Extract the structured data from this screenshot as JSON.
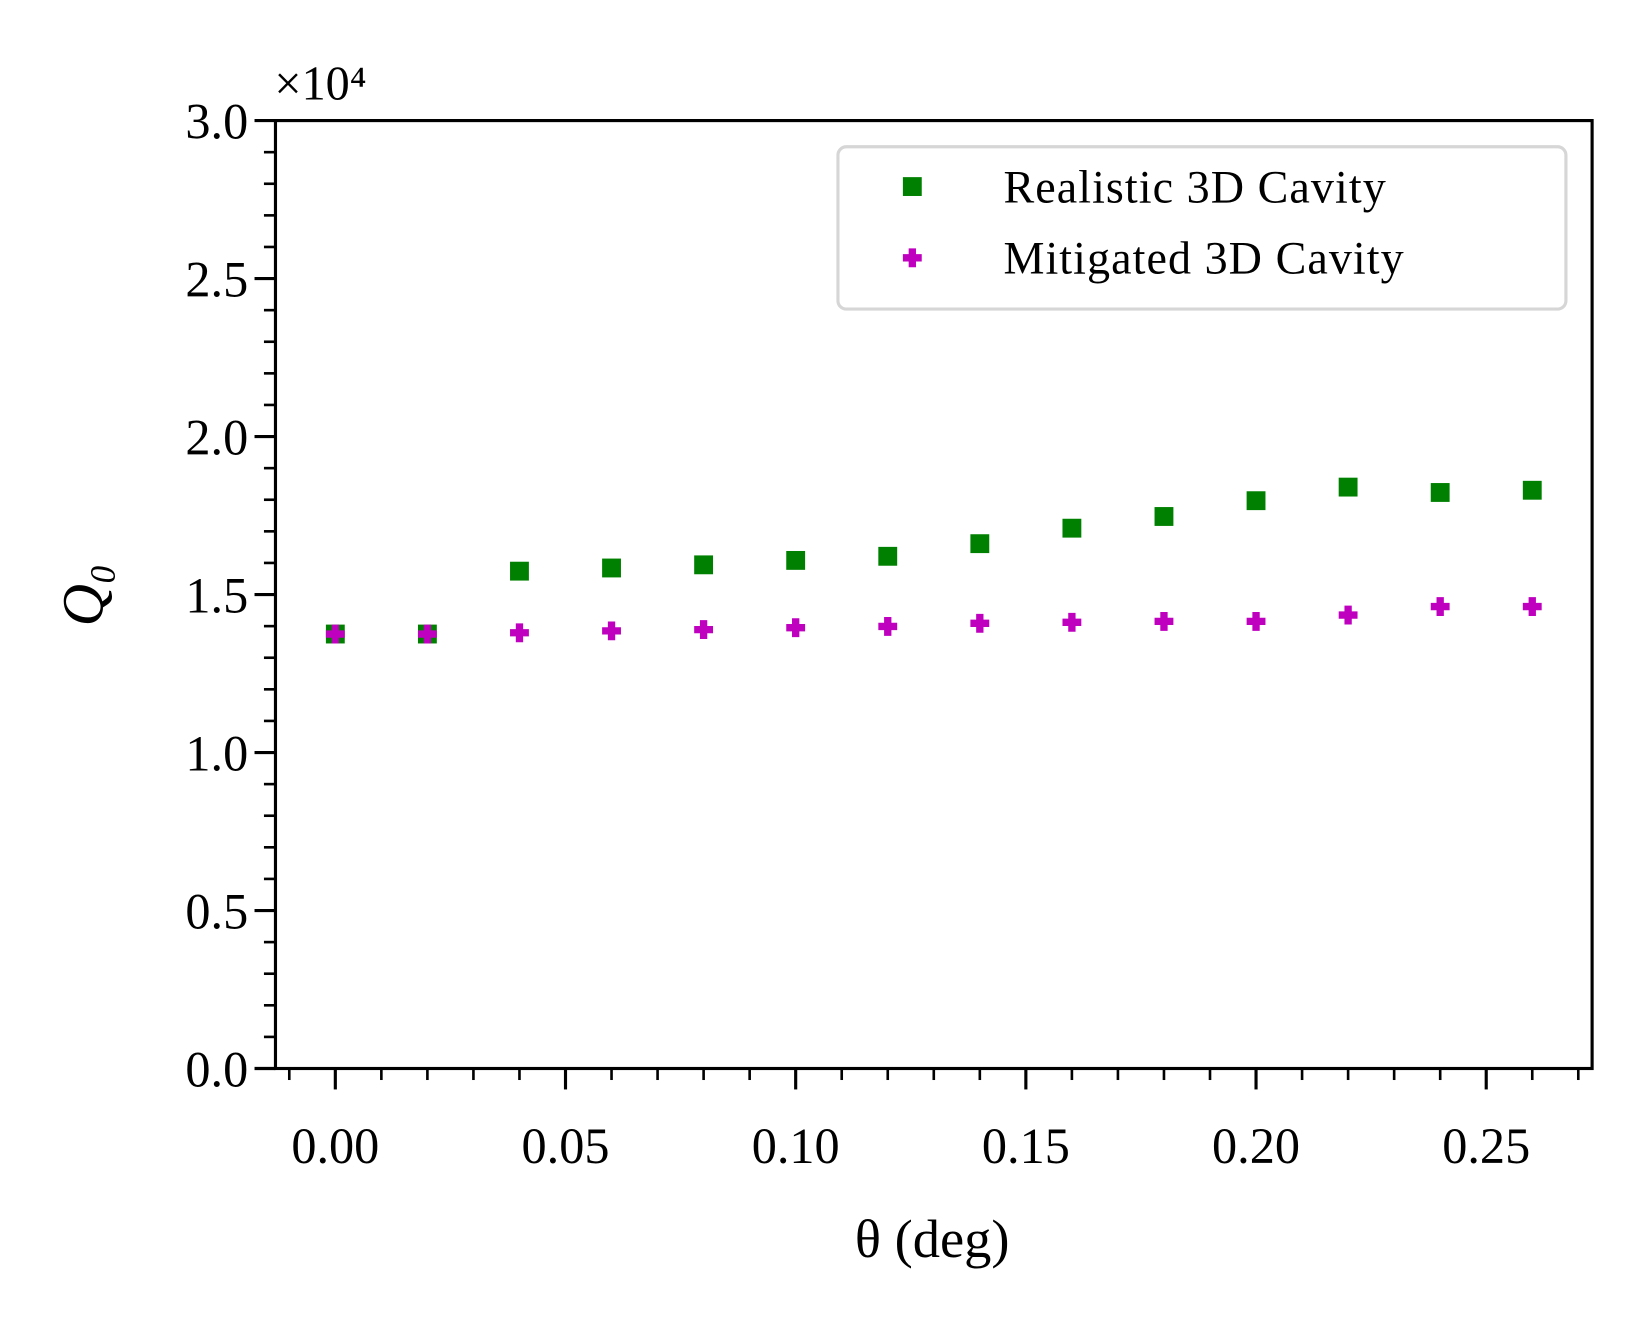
{
  "chart_data": {
    "type": "scatter",
    "xlabel": "θ (deg)",
    "ylabel": "Q₀",
    "y_offset_text": "×10⁴",
    "xlim": [
      -0.013,
      0.273
    ],
    "ylim": [
      0,
      3.0
    ],
    "xticks": [
      {
        "value": 0,
        "label": "0.00"
      },
      {
        "value": 0.05,
        "label": "0.05"
      },
      {
        "value": 0.1,
        "label": "0.10"
      },
      {
        "value": 0.15,
        "label": "0.15"
      },
      {
        "value": 0.2,
        "label": "0.20"
      },
      {
        "value": 0.25,
        "label": "0.25"
      }
    ],
    "yticks": [
      {
        "value": 0,
        "label": "0.0"
      },
      0.5,
      {
        "value": 1,
        "label": "1.0"
      },
      1.5,
      {
        "value": 2,
        "label": "2.0"
      },
      2.5,
      {
        "value": 3,
        "label": "3.0"
      }
    ],
    "xminorticks": [
      -0.01,
      0.01,
      0.02,
      0.03,
      0.04,
      0.06,
      0.07,
      0.08,
      0.09,
      0.11,
      0.12,
      0.13,
      0.14,
      0.16,
      0.17,
      0.18,
      0.19,
      0.21,
      0.22,
      0.23,
      0.24,
      0.26,
      0.27
    ],
    "yminorticks": [
      0.1,
      0.2,
      0.3,
      0.4,
      0.6,
      0.7,
      0.8,
      0.9,
      1.1,
      1.2,
      1.3,
      1.4,
      1.6,
      1.7,
      1.8,
      1.9,
      2.1,
      2.2,
      2.3,
      2.4,
      2.6,
      2.7,
      2.8,
      2.9
    ],
    "legend_position": "upper right",
    "x": [
      0,
      0.02,
      0.04,
      0.06,
      0.08,
      0.1,
      0.12,
      0.14,
      0.16,
      0.18,
      0.2,
      0.22,
      0.24,
      0.26
    ],
    "series": [
      {
        "name": "Realistic 3D Cavity",
        "color": "#008000",
        "marker": "square",
        "values": [
          1.375,
          1.375,
          1.574,
          1.584,
          1.594,
          1.608,
          1.621,
          1.661,
          1.71,
          1.747,
          1.797,
          1.84,
          1.823,
          1.83
        ]
      },
      {
        "name": "Mitigated 3D Cavity",
        "color": "#bf00bf",
        "marker": "plus",
        "values": [
          1.375,
          1.375,
          1.379,
          1.385,
          1.389,
          1.395,
          1.399,
          1.409,
          1.412,
          1.415,
          1.415,
          1.435,
          1.462,
          1.462
        ]
      }
    ]
  }
}
